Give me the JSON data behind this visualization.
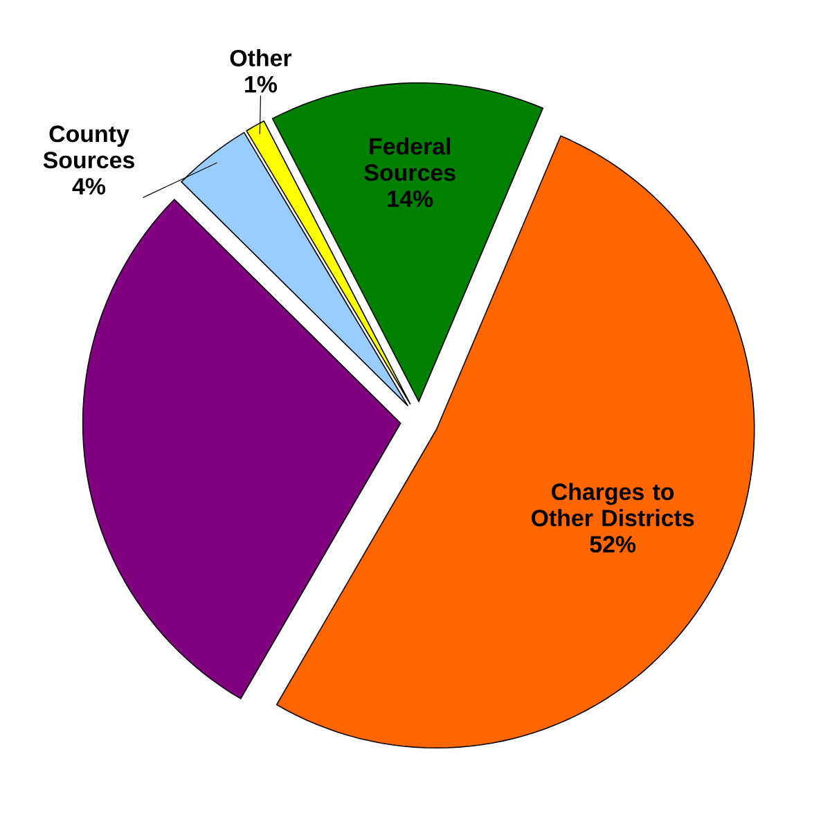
{
  "chart_data": {
    "type": "pie",
    "categories": [
      "Charges to Other Districts",
      null,
      "County Sources",
      "Other",
      "Federal Sources"
    ],
    "values": [
      52,
      29,
      4,
      1,
      14
    ],
    "colors": [
      "#ff6600",
      "#800080",
      "#99ccff",
      "#ffff00",
      "#008000"
    ],
    "value_labels": [
      "52%",
      null,
      "4%",
      "1%",
      "14%"
    ]
  }
}
